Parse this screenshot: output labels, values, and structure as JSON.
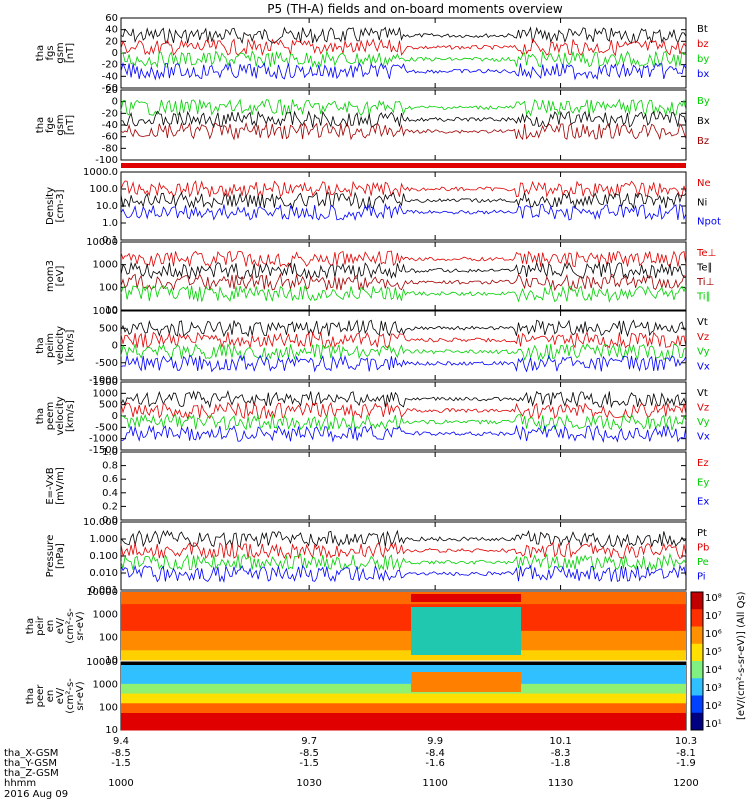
{
  "title": "P5 (TH-A) fields and on-board moments overview",
  "colors": {
    "black": "#000000",
    "red": "#e00000",
    "green": "#00d000",
    "blue": "#0000ff",
    "darkred": "#a00000"
  },
  "chart_data": {
    "type": "line",
    "x_ticks": [
      "9.4",
      "9.7",
      "9.9",
      "10.1",
      "10.3"
    ],
    "ephemeris": [
      {
        "label": "tha_X-GSM",
        "values": [
          "-8.5",
          "-8.5",
          "-8.4",
          "-8.3",
          "-8.1"
        ]
      },
      {
        "label": "tha_Y-GSM",
        "values": [
          "-1.5",
          "-1.5",
          "-1.6",
          "-1.8",
          "-1.9"
        ]
      },
      {
        "label": "tha_Z-GSM",
        "values": [
          "",
          "",
          "",
          "",
          ""
        ]
      },
      {
        "label": "hhmm",
        "values": [
          "1000",
          "1030",
          "1100",
          "1130",
          "1200"
        ]
      }
    ],
    "date": "2016 Aug 09",
    "panels": [
      {
        "name": "fgs",
        "ylabel": [
          "tha",
          "fgs",
          "gsm",
          "[nT]"
        ],
        "yticks": [
          "60",
          "40",
          "20",
          "0",
          "-20",
          "-40",
          "-60"
        ],
        "series": [
          {
            "name": "Bt",
            "color": "black",
            "level": 30
          },
          {
            "name": "bz",
            "color": "red",
            "level": -5
          },
          {
            "name": "by",
            "color": "green",
            "level": 10
          },
          {
            "name": "bx",
            "color": "blue",
            "level": 0
          }
        ]
      },
      {
        "name": "fge",
        "ylabel": [
          "tha",
          "fge",
          "gsm",
          "[nT]"
        ],
        "yticks": [
          "20",
          "0",
          "-20",
          "-40",
          "-60",
          "-80",
          "-100"
        ],
        "series": [
          {
            "name": "By",
            "color": "green",
            "level": 5
          },
          {
            "name": "Bx",
            "color": "black",
            "level": -5
          },
          {
            "name": "Bz",
            "color": "darkred",
            "level": -50
          }
        ]
      },
      {
        "name": "density",
        "ylabel": [
          "Density",
          "[cm-3]"
        ],
        "yticks": [
          "1000.0",
          "100.0",
          "10.0",
          "1.0",
          "0.1"
        ],
        "series": [
          {
            "name": "Ne",
            "color": "red",
            "level": 10
          },
          {
            "name": "Ni",
            "color": "black",
            "level": 10
          },
          {
            "name": "Npot",
            "color": "blue",
            "level": 40
          }
        ]
      },
      {
        "name": "mom",
        "ylabel": [
          "mom3",
          "[eV]"
        ],
        "yticks": [
          "10000",
          "1000",
          "100",
          "10"
        ],
        "series": [
          {
            "name": "Te⊥",
            "color": "red",
            "level": 100
          },
          {
            "name": "Te∥",
            "color": "black",
            "level": 80
          },
          {
            "name": "Ti⊥",
            "color": "darkred",
            "level": 700
          },
          {
            "name": "Ti∥",
            "color": "green",
            "level": 500
          }
        ]
      },
      {
        "name": "peim",
        "ylabel": [
          "tha",
          "peim",
          "velocity",
          "[km/s]"
        ],
        "yticks": [
          "1000",
          "500",
          "0",
          "-500",
          "-1000"
        ],
        "series": [
          {
            "name": "Vt",
            "color": "black",
            "level": 150
          },
          {
            "name": "Vz",
            "color": "red",
            "level": 0
          },
          {
            "name": "Vy",
            "color": "green",
            "level": -20
          },
          {
            "name": "Vx",
            "color": "blue",
            "level": -50
          }
        ]
      },
      {
        "name": "peem",
        "ylabel": [
          "tha",
          "peem",
          "velocity",
          "[km/s]"
        ],
        "yticks": [
          "1500",
          "1000",
          "500",
          "0",
          "-500",
          "-1000",
          "-1500"
        ],
        "series": [
          {
            "name": "Vt",
            "color": "black",
            "level": 400
          },
          {
            "name": "Vz",
            "color": "red",
            "level": 0
          },
          {
            "name": "Vy",
            "color": "green",
            "level": -50
          },
          {
            "name": "Vx",
            "color": "blue",
            "level": -200
          }
        ]
      },
      {
        "name": "efield",
        "ylabel": [
          "E=-VxB",
          "[mV/m]"
        ],
        "yticks": [
          "1.0",
          "0.8",
          "0.6",
          "0.4",
          "0.2",
          "0.0"
        ],
        "series": [
          {
            "name": "Ez",
            "color": "red"
          },
          {
            "name": "Ey",
            "color": "green"
          },
          {
            "name": "Ex",
            "color": "blue"
          }
        ]
      },
      {
        "name": "pressure",
        "ylabel": [
          "Pressure",
          "[nPa]"
        ],
        "yticks": [
          "10.000",
          "1.000",
          "0.100",
          "0.010",
          "0.001"
        ],
        "series": [
          {
            "name": "Pt",
            "color": "black",
            "level": 0.9
          },
          {
            "name": "Pb",
            "color": "red",
            "level": 0.08
          },
          {
            "name": "Pe",
            "color": "green",
            "level": 0.03
          },
          {
            "name": "Pi",
            "color": "blue",
            "level": 0.6
          }
        ]
      },
      {
        "name": "peir",
        "ylabel": [
          "tha",
          "peir",
          "en",
          "eV/",
          "(cm²-s-",
          "sr-eV)"
        ],
        "yticks": [
          "10000",
          "1000",
          "100",
          "10"
        ],
        "type": "spectrogram"
      },
      {
        "name": "peer",
        "ylabel": [
          "tha",
          "peer",
          "en",
          "eV/",
          "(cm²-s-",
          "sr-eV)"
        ],
        "yticks": [
          "10000",
          "1000",
          "100",
          "10"
        ],
        "type": "spectrogram"
      }
    ],
    "colorbar": {
      "ticks": [
        "10⁸",
        "10⁷",
        "10⁶",
        "10⁵",
        "10⁴",
        "10³",
        "10²",
        "10¹"
      ],
      "label": "[eV/(cm²-s-sr-eV)] (All Qs)"
    }
  }
}
